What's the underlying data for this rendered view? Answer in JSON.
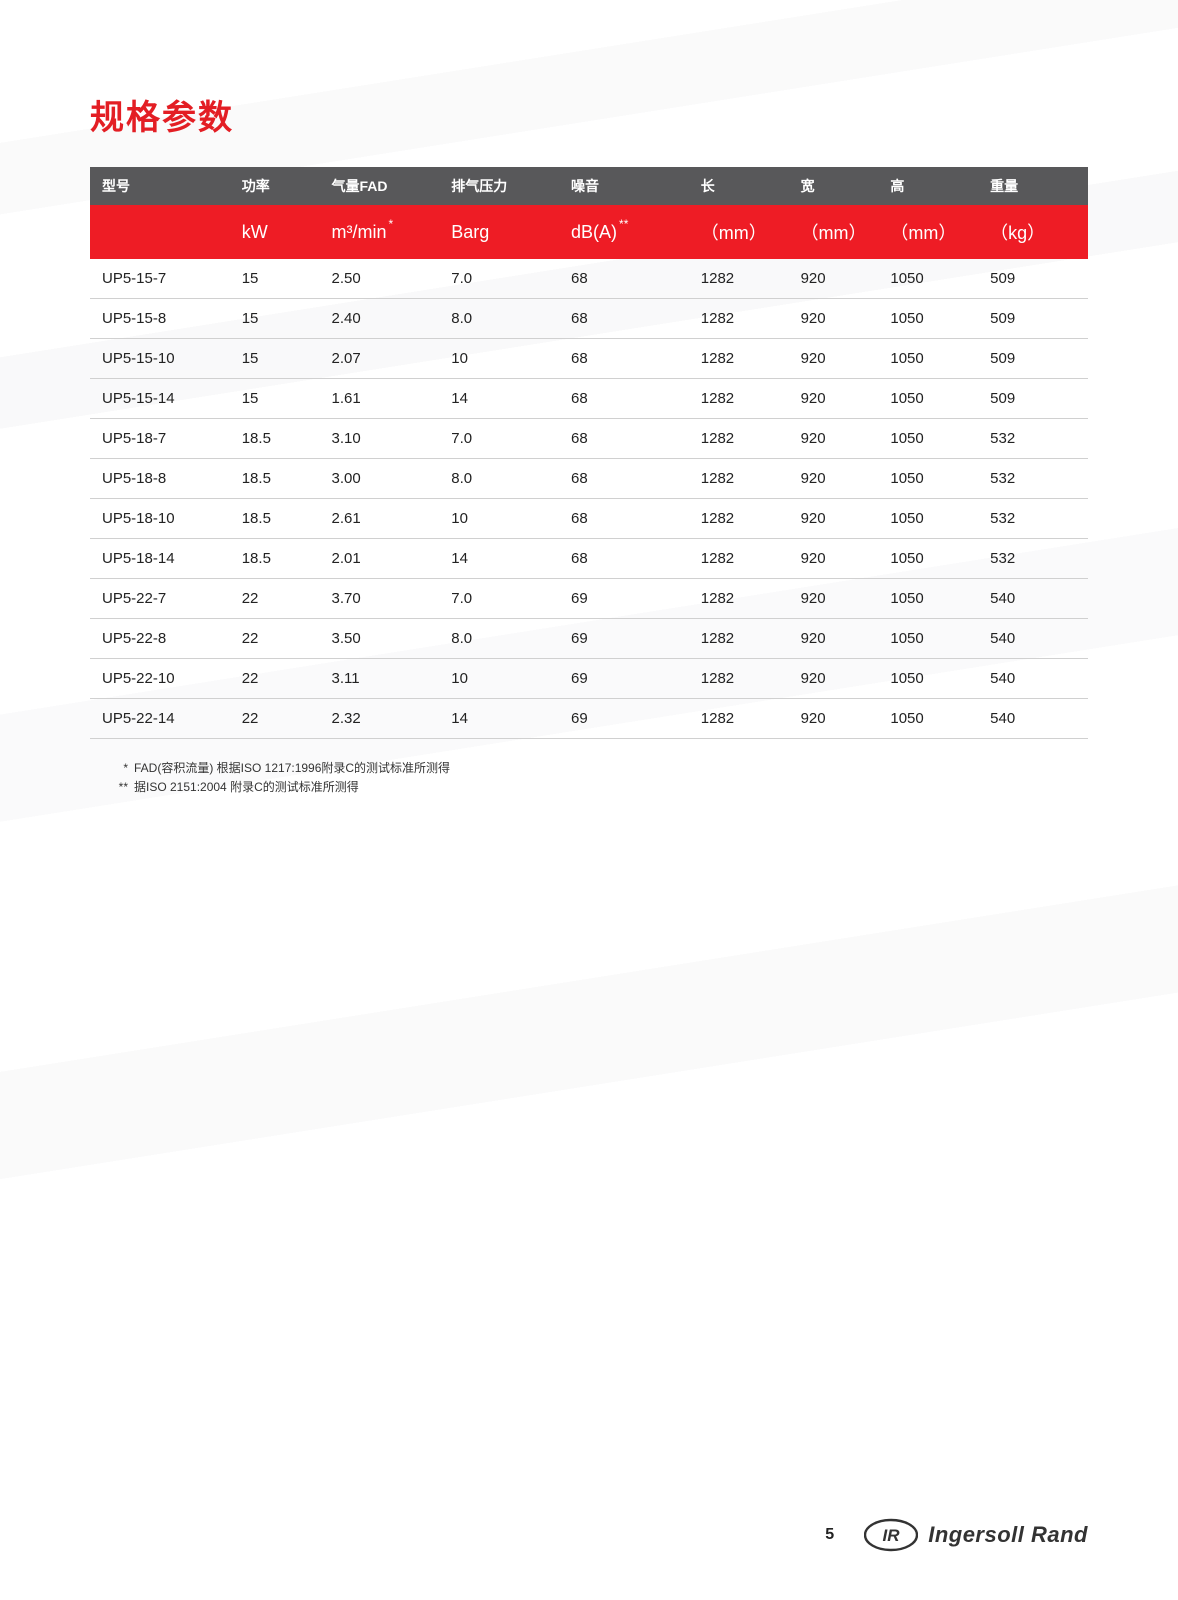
{
  "page": {
    "title": "规格参数",
    "page_number": "5",
    "brand": "Ingersoll Rand",
    "colors": {
      "title": "#e31e24",
      "header_row_bg": "#58585a",
      "units_row_bg": "#ee1c25",
      "header_text": "#ffffff",
      "row_border": "#d0d0d0",
      "body_text": "#222222",
      "page_bg": "#ffffff"
    }
  },
  "table": {
    "type": "table",
    "columns_cn": [
      "型号",
      "功率",
      "气量FAD",
      "排气压力",
      "噪音",
      "长",
      "宽",
      "高",
      "重量"
    ],
    "units": [
      "",
      "kW",
      "m³/min",
      "Barg",
      "dB(A)",
      "（mm）",
      "（mm）",
      "（mm）",
      "（kg）"
    ],
    "unit_superscripts": [
      "",
      "",
      "*",
      "",
      "**",
      "",
      "",
      "",
      ""
    ],
    "col_widths_pct": [
      14,
      9,
      12,
      12,
      13,
      10,
      9,
      10,
      11
    ],
    "header_fontsize_pt": 10,
    "units_fontsize_pt": 13,
    "body_fontsize_pt": 11,
    "rows": [
      [
        "UP5-15-7",
        "15",
        "2.50",
        "7.0",
        "68",
        "1282",
        "920",
        "1050",
        "509"
      ],
      [
        "UP5-15-8",
        "15",
        "2.40",
        "8.0",
        "68",
        "1282",
        "920",
        "1050",
        "509"
      ],
      [
        "UP5-15-10",
        "15",
        "2.07",
        "10",
        "68",
        "1282",
        "920",
        "1050",
        "509"
      ],
      [
        "UP5-15-14",
        "15",
        "1.61",
        "14",
        "68",
        "1282",
        "920",
        "1050",
        "509"
      ],
      [
        "UP5-18-7",
        "18.5",
        "3.10",
        "7.0",
        "68",
        "1282",
        "920",
        "1050",
        "532"
      ],
      [
        "UP5-18-8",
        "18.5",
        "3.00",
        "8.0",
        "68",
        "1282",
        "920",
        "1050",
        "532"
      ],
      [
        "UP5-18-10",
        "18.5",
        "2.61",
        "10",
        "68",
        "1282",
        "920",
        "1050",
        "532"
      ],
      [
        "UP5-18-14",
        "18.5",
        "2.01",
        "14",
        "68",
        "1282",
        "920",
        "1050",
        "532"
      ],
      [
        "UP5-22-7",
        "22",
        "3.70",
        "7.0",
        "69",
        "1282",
        "920",
        "1050",
        "540"
      ],
      [
        "UP5-22-8",
        "22",
        "3.50",
        "8.0",
        "69",
        "1282",
        "920",
        "1050",
        "540"
      ],
      [
        "UP5-22-10",
        "22",
        "3.11",
        "10",
        "69",
        "1282",
        "920",
        "1050",
        "540"
      ],
      [
        "UP5-22-14",
        "22",
        "2.32",
        "14",
        "69",
        "1282",
        "920",
        "1050",
        "540"
      ]
    ]
  },
  "footnotes": {
    "star": "*",
    "star_text": "FAD(容积流量) 根据ISO 1217:1996附录C的测试标准所测得",
    "dstar": "**",
    "dstar_text": "据ISO 2151:2004 附录C的测试标准所测得"
  }
}
